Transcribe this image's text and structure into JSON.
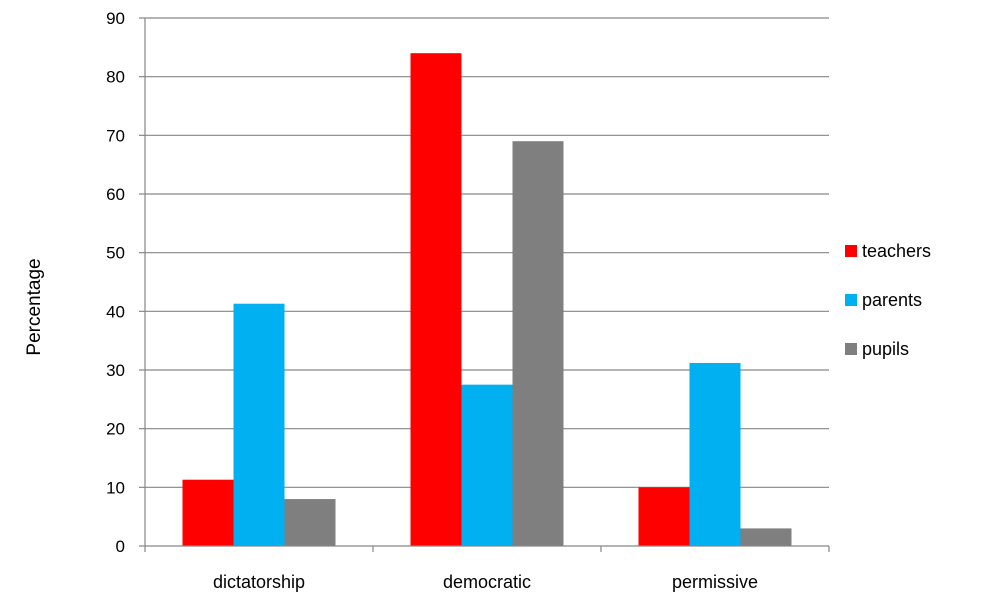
{
  "chart_data": {
    "type": "bar",
    "title": "",
    "xlabel": "",
    "ylabel": "Percentage",
    "ylim": [
      0,
      90
    ],
    "ytick_step": 10,
    "grid": true,
    "legend_position": "right",
    "categories": [
      "dictatorship",
      "democratic",
      "permissive"
    ],
    "series": [
      {
        "name": "teachers",
        "color": "#ff0000",
        "values": [
          11.3,
          84,
          10
        ]
      },
      {
        "name": "parents",
        "color": "#00b0f0",
        "values": [
          41.3,
          27.5,
          31.2
        ]
      },
      {
        "name": "pupils",
        "color": "#7f7f7f",
        "values": [
          8,
          69,
          3
        ]
      }
    ]
  }
}
